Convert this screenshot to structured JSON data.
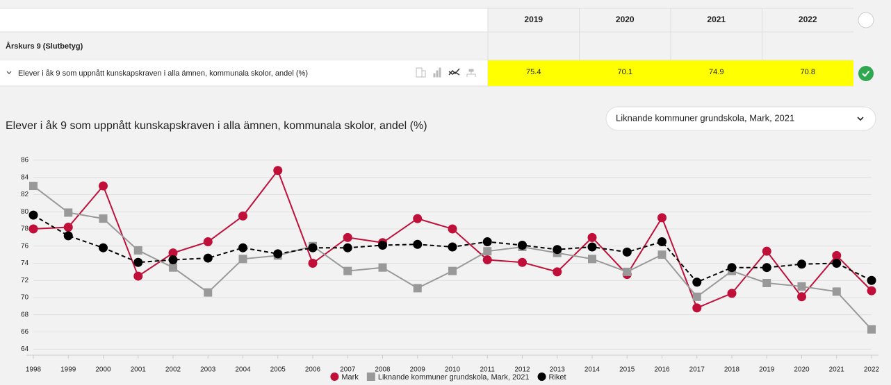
{
  "table": {
    "columns": [
      "2019",
      "2020",
      "2021",
      "2022"
    ],
    "section": "Årskurs 9 (Slutbetyg)",
    "rows": [
      {
        "label": "Elever i åk 9 som uppnått kunskapskraven i alla ämnen, kommunala skolor, andel (%)",
        "values": [
          75.4,
          70.1,
          74.9,
          70.8
        ]
      }
    ]
  },
  "dropdown": "Liknande kommuner grundskola, Mark, 2021",
  "chart_data": {
    "type": "line",
    "title": "Elever i åk 9 som uppnått kunskapskraven i alla ämnen, kommunala skolor, andel (%)",
    "categories": [
      "1998",
      "1999",
      "2000",
      "2001",
      "2002",
      "2003",
      "2004",
      "2005",
      "2006",
      "2007",
      "2008",
      "2009",
      "2010",
      "2011",
      "2012",
      "2013",
      "2014",
      "2015",
      "2016",
      "2017",
      "2018",
      "2019",
      "2020",
      "2021",
      "2022"
    ],
    "series": [
      {
        "name": "Mark",
        "color": "#c0103a",
        "marker": "circle",
        "dashed": false,
        "values": [
          78.0,
          78.2,
          83.0,
          72.5,
          75.2,
          76.5,
          79.5,
          84.8,
          74.0,
          77.0,
          76.4,
          79.2,
          78.0,
          74.4,
          74.1,
          73.0,
          77.0,
          72.7,
          79.3,
          68.8,
          70.5,
          75.4,
          70.1,
          74.9,
          70.8
        ]
      },
      {
        "name": "Liknande kommuner grundskola, Mark, 2021",
        "color": "#999999",
        "marker": "square",
        "dashed": false,
        "values": [
          83.0,
          79.9,
          79.2,
          75.5,
          73.5,
          70.6,
          74.5,
          74.9,
          76.0,
          73.1,
          73.5,
          71.1,
          73.1,
          75.4,
          75.9,
          75.2,
          74.5,
          73.0,
          75.0,
          70.1,
          73.1,
          71.7,
          71.3,
          70.7,
          66.3
        ]
      },
      {
        "name": "Riket",
        "color": "#000000",
        "marker": "circle",
        "dashed": true,
        "values": [
          79.6,
          77.2,
          75.8,
          74.1,
          74.4,
          74.6,
          75.8,
          75.1,
          75.8,
          75.8,
          76.1,
          76.2,
          75.9,
          76.5,
          76.1,
          75.6,
          75.9,
          75.3,
          76.5,
          71.8,
          73.5,
          73.5,
          73.9,
          74.0,
          72.0
        ]
      }
    ],
    "ylim": [
      63.3,
      86.8
    ],
    "yticks": [
      64,
      66,
      68,
      70,
      72,
      74,
      76,
      78,
      80,
      82,
      84,
      86
    ],
    "grid": true,
    "legend": "bottom"
  }
}
